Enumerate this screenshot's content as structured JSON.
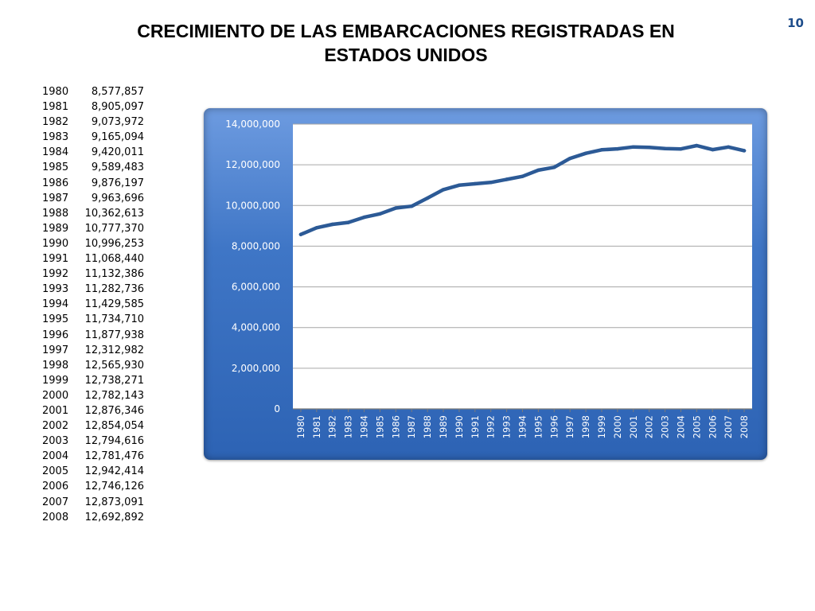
{
  "slide": {
    "title_line1": "CRECIMIENTO DE LAS EMBARCACIONES REGISTRADAS EN",
    "title_line2": "ESTADOS UNIDOS",
    "page_number": "10"
  },
  "table": {
    "rows": [
      {
        "year": "1980",
        "value": "8,577,857"
      },
      {
        "year": "1981",
        "value": "8,905,097"
      },
      {
        "year": "1982",
        "value": "9,073,972"
      },
      {
        "year": "1983",
        "value": "9,165,094"
      },
      {
        "year": "1984",
        "value": "9,420,011"
      },
      {
        "year": "1985",
        "value": "9,589,483"
      },
      {
        "year": "1986",
        "value": "9,876,197"
      },
      {
        "year": "1987",
        "value": "9,963,696"
      },
      {
        "year": "1988",
        "value": "10,362,613"
      },
      {
        "year": "1989",
        "value": "10,777,370"
      },
      {
        "year": "1990",
        "value": "10,996,253"
      },
      {
        "year": "1991",
        "value": "11,068,440"
      },
      {
        "year": "1992",
        "value": "11,132,386"
      },
      {
        "year": "1993",
        "value": "11,282,736"
      },
      {
        "year": "1994",
        "value": "11,429,585"
      },
      {
        "year": "1995",
        "value": "11,734,710"
      },
      {
        "year": "1996",
        "value": "11,877,938"
      },
      {
        "year": "1997",
        "value": "12,312,982"
      },
      {
        "year": "1998",
        "value": "12,565,930"
      },
      {
        "year": "1999",
        "value": "12,738,271"
      },
      {
        "year": "2000",
        "value": "12,782,143"
      },
      {
        "year": "2001",
        "value": "12,876,346"
      },
      {
        "year": "2002",
        "value": "12,854,054"
      },
      {
        "year": "2003",
        "value": "12,794,616"
      },
      {
        "year": "2004",
        "value": "12,781,476"
      },
      {
        "year": "2005",
        "value": "12,942,414"
      },
      {
        "year": "2006",
        "value": "12,746,126"
      },
      {
        "year": "2007",
        "value": "12,873,091"
      },
      {
        "year": "2008",
        "value": "12,692,892"
      }
    ]
  },
  "chart_data": {
    "type": "line",
    "title": "",
    "xlabel": "",
    "ylabel": "",
    "x": [
      "1980",
      "1981",
      "1982",
      "1983",
      "1984",
      "1985",
      "1986",
      "1987",
      "1988",
      "1989",
      "1990",
      "1991",
      "1992",
      "1993",
      "1994",
      "1995",
      "1996",
      "1997",
      "1998",
      "1999",
      "2000",
      "2001",
      "2002",
      "2003",
      "2004",
      "2005",
      "2006",
      "2007",
      "2008"
    ],
    "series": [
      {
        "values": [
          8577857,
          8905097,
          9073972,
          9165094,
          9420011,
          9589483,
          9876197,
          9963696,
          10362613,
          10777370,
          10996253,
          11068440,
          11132386,
          11282736,
          11429585,
          11734710,
          11877938,
          12312982,
          12565930,
          12738271,
          12782143,
          12876346,
          12854054,
          12794616,
          12781476,
          12942414,
          12746126,
          12873091,
          12692892
        ]
      }
    ],
    "ylim": [
      0,
      14000000
    ],
    "yticks": [
      0,
      2000000,
      4000000,
      6000000,
      8000000,
      10000000,
      12000000,
      14000000
    ],
    "ytick_labels": [
      "0",
      "2,000,000",
      "4,000,000",
      "6,000,000",
      "8,000,000",
      "10,000,000",
      "12,000,000",
      "14,000,000"
    ],
    "grid": true,
    "legend": "none",
    "colors": {
      "line": "#2c5a96",
      "plot_background": "#ffffff",
      "frame": "#3f76c6",
      "gridline": "#a6a6a6",
      "tick_label": "#ffffff"
    }
  }
}
